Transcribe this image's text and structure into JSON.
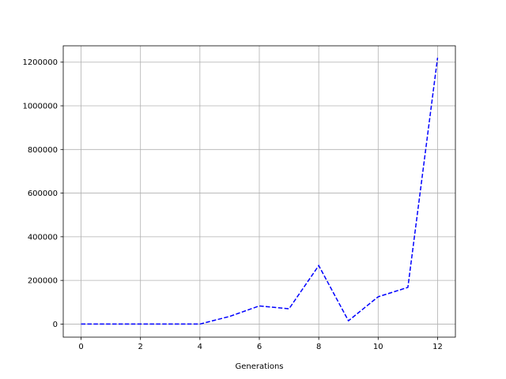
{
  "chart_data": {
    "type": "line",
    "title": "",
    "xlabel": "Generations",
    "ylabel": "",
    "xlim": [
      -0.6,
      12.6
    ],
    "ylim": [
      -60000,
      1275000
    ],
    "xticks": [
      0,
      2,
      4,
      6,
      8,
      10,
      12
    ],
    "yticks": [
      0,
      200000,
      400000,
      600000,
      800000,
      1000000,
      1200000
    ],
    "grid": true,
    "series": [
      {
        "color": "#0000ff",
        "line_style": "dashed",
        "x": [
          0,
          1,
          2,
          3,
          4,
          5,
          6,
          7,
          8,
          9,
          10,
          11,
          12
        ],
        "y": [
          0,
          0,
          0,
          0,
          0,
          35000,
          83000,
          70000,
          268000,
          15000,
          125000,
          168000,
          1220000
        ]
      }
    ]
  }
}
